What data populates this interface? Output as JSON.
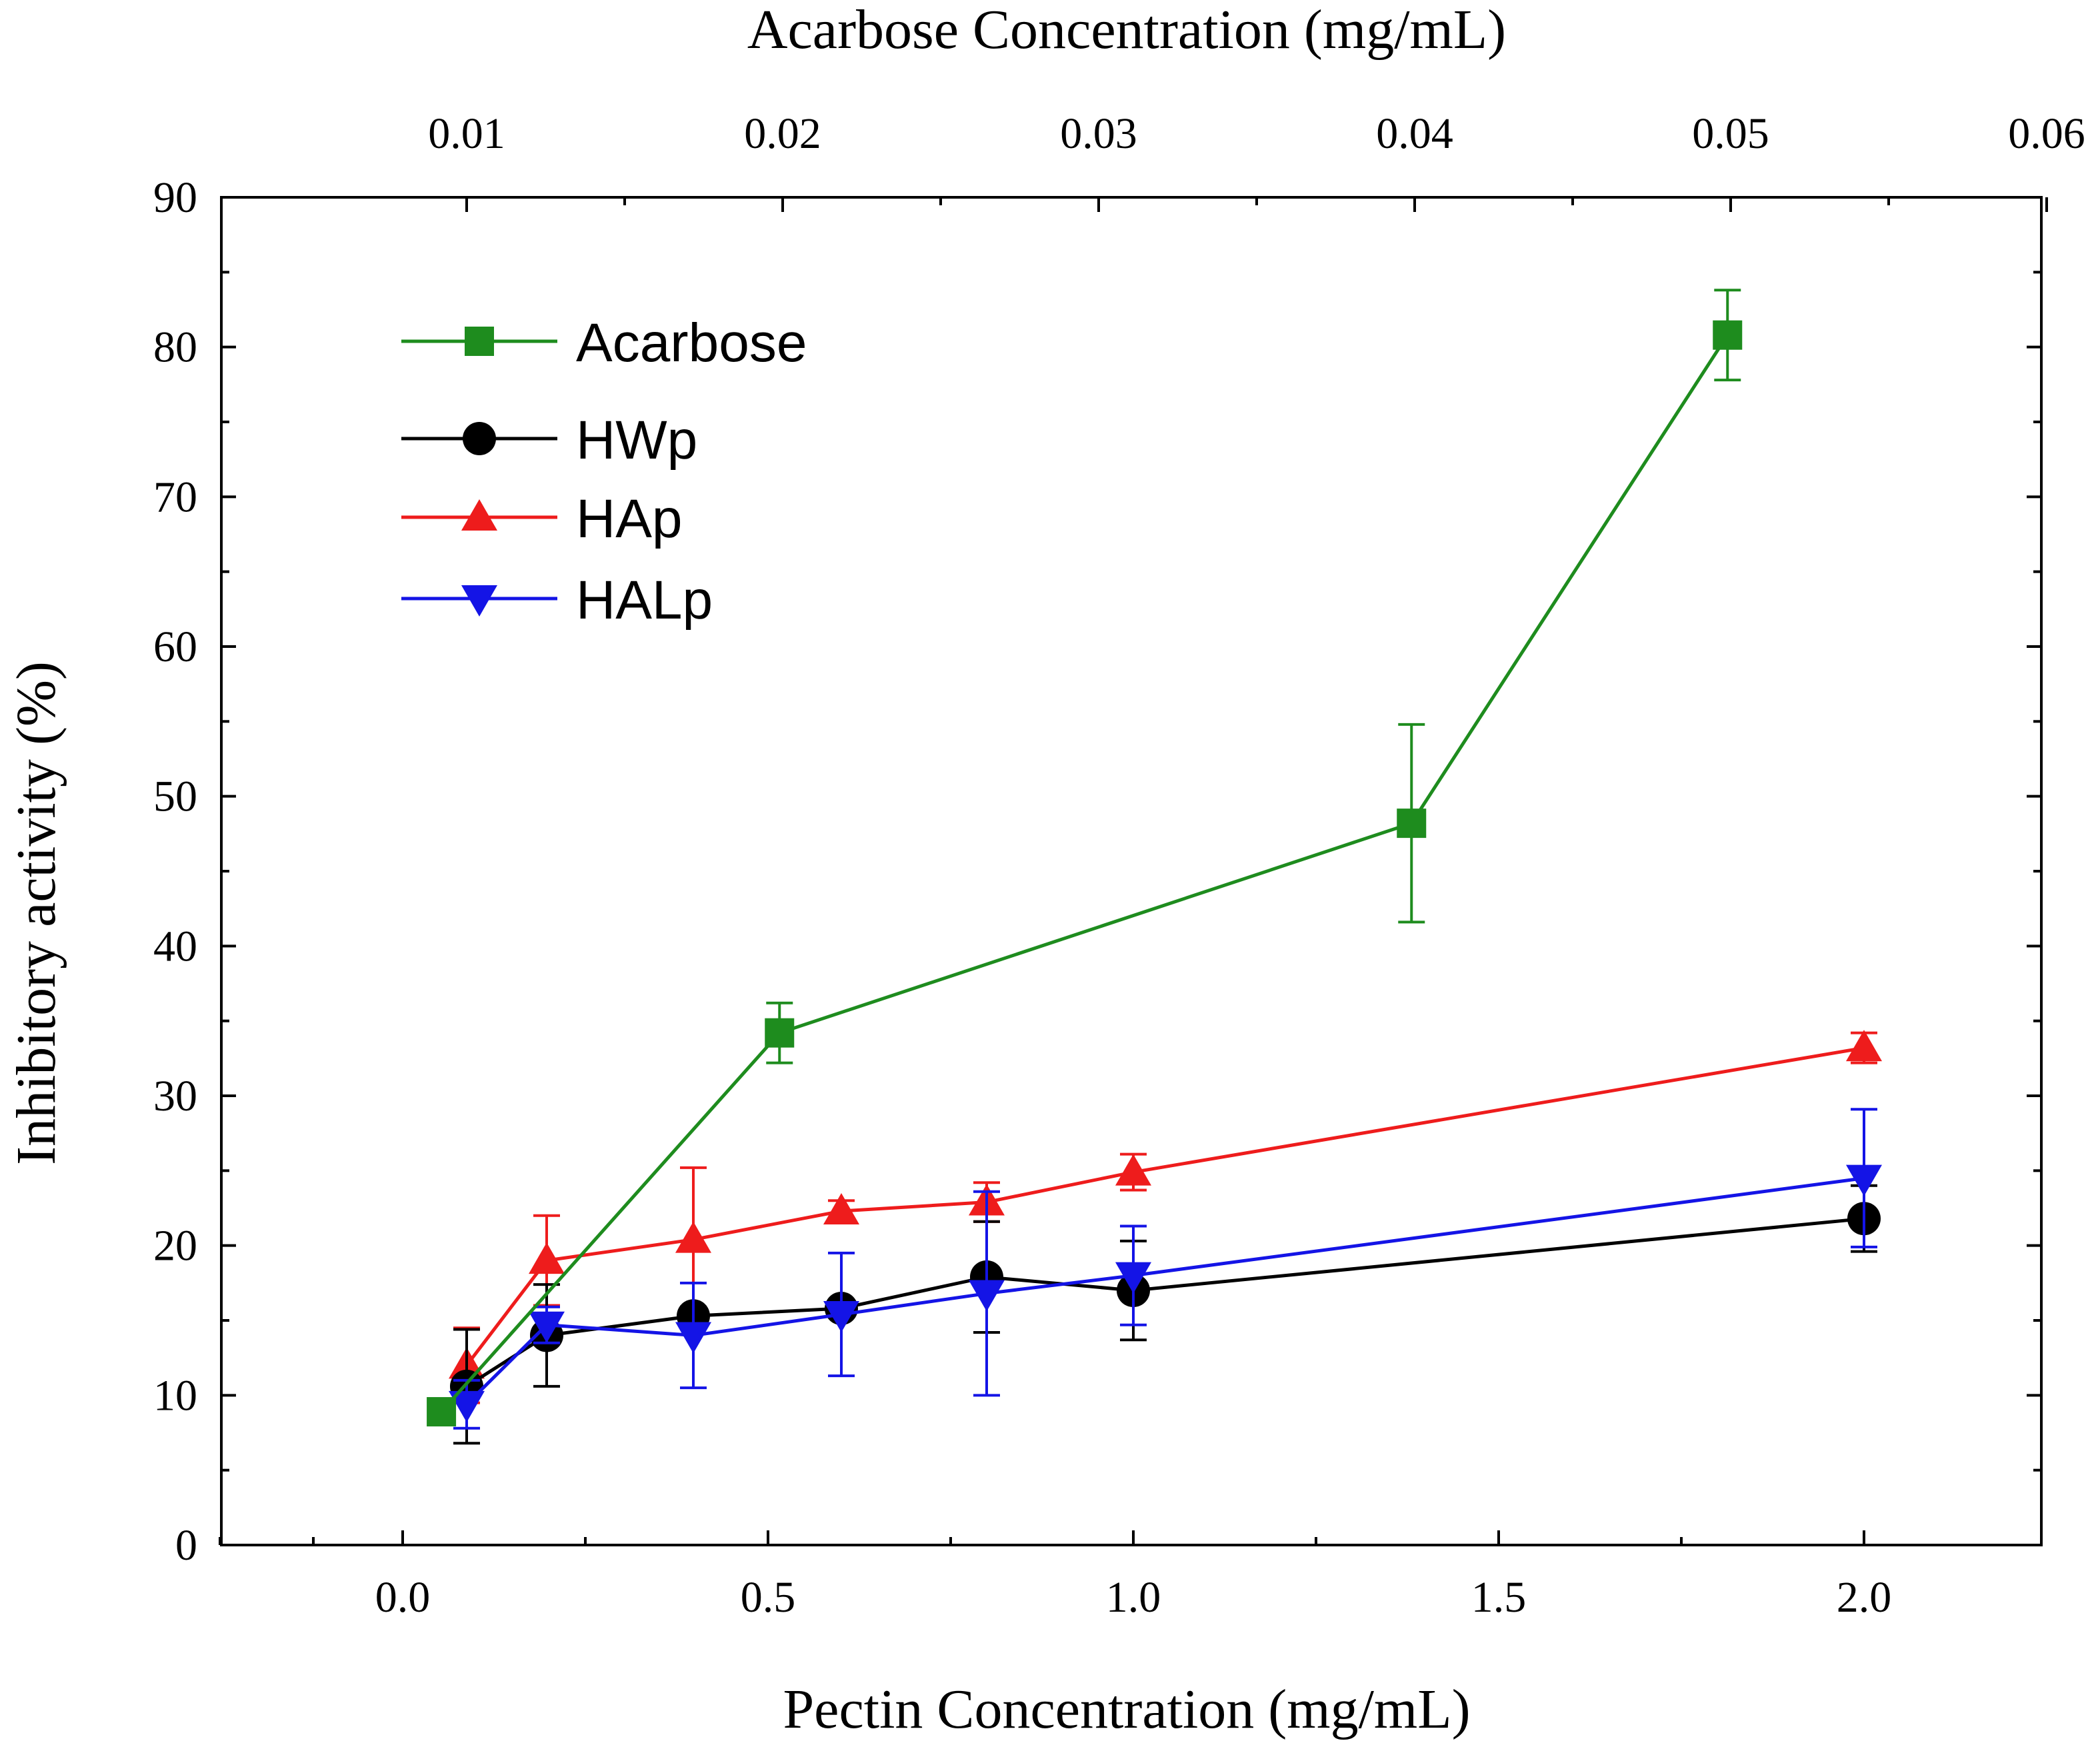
{
  "chart_data": {
    "type": "line",
    "title": "",
    "xlabel": "Pectin Concentration (mg/mL)",
    "x2label": "Acarbose Concentration (mg/mL)",
    "ylabel": "Inhibitory activity (%)",
    "ylim": [
      0,
      90
    ],
    "yticks": [
      "0",
      "10",
      "20",
      "30",
      "40",
      "50",
      "60",
      "70",
      "80",
      "90"
    ],
    "xticks": [
      "0.0",
      "0.5",
      "1.0",
      "1.5",
      "2.0"
    ],
    "x2ticks": [
      "0.01",
      "0.02",
      "0.03",
      "0.04",
      "0.05",
      "0.06"
    ],
    "legend_position": "top-left",
    "series": [
      {
        "name": "Acarbose",
        "color": "#1e8c1e",
        "marker": "square",
        "axis": "top",
        "x": [
          0.01,
          0.02,
          0.04,
          0.05
        ],
        "x_note": "top axis values; first point slightly left of 0.01",
        "points": [
          {
            "x": 0.0092,
            "y": 8.9,
            "err": 0.6
          },
          {
            "x": 0.0199,
            "y": 34.2,
            "err": 2.0
          },
          {
            "x": 0.0399,
            "y": 48.2,
            "err": 6.6
          },
          {
            "x": 0.0499,
            "y": 80.8,
            "err": 3.0
          }
        ]
      },
      {
        "name": "HWp",
        "color": "#000000",
        "marker": "circle",
        "axis": "bottom",
        "points": [
          {
            "x": 0.1,
            "y": 10.6,
            "err": 3.8
          },
          {
            "x": 0.2,
            "y": 14.0,
            "err": 3.4
          },
          {
            "x": 0.4,
            "y": 15.3,
            "err": 0.6
          },
          {
            "x": 0.6,
            "y": 15.8,
            "err": 0.5
          },
          {
            "x": 0.8,
            "y": 17.9,
            "err": 3.7
          },
          {
            "x": 1.0,
            "y": 17.0,
            "err": 3.3
          },
          {
            "x": 2.0,
            "y": 21.8,
            "err": 2.2
          }
        ]
      },
      {
        "name": "HAp",
        "color": "#ee1c1c",
        "marker": "triangle-up",
        "axis": "bottom",
        "points": [
          {
            "x": 0.1,
            "y": 12.0,
            "err": 2.5
          },
          {
            "x": 0.2,
            "y": 19.0,
            "err": 3.0
          },
          {
            "x": 0.4,
            "y": 20.4,
            "err": 4.8
          },
          {
            "x": 0.6,
            "y": 22.3,
            "err": 0.7
          },
          {
            "x": 0.8,
            "y": 22.9,
            "err": 1.3
          },
          {
            "x": 1.0,
            "y": 24.9,
            "err": 1.2
          },
          {
            "x": 2.0,
            "y": 33.2,
            "err": 1.0
          }
        ]
      },
      {
        "name": "HALp",
        "color": "#1414e6",
        "marker": "triangle-down",
        "axis": "bottom",
        "points": [
          {
            "x": 0.1,
            "y": 9.4,
            "err": 1.6
          },
          {
            "x": 0.2,
            "y": 14.7,
            "err": 1.2
          },
          {
            "x": 0.4,
            "y": 14.0,
            "err": 3.5
          },
          {
            "x": 0.6,
            "y": 15.4,
            "err": 4.1
          },
          {
            "x": 0.8,
            "y": 16.8,
            "err": 6.8
          },
          {
            "x": 1.0,
            "y": 18.0,
            "err": 3.3
          },
          {
            "x": 2.0,
            "y": 24.5,
            "err": 4.6
          }
        ]
      }
    ]
  }
}
